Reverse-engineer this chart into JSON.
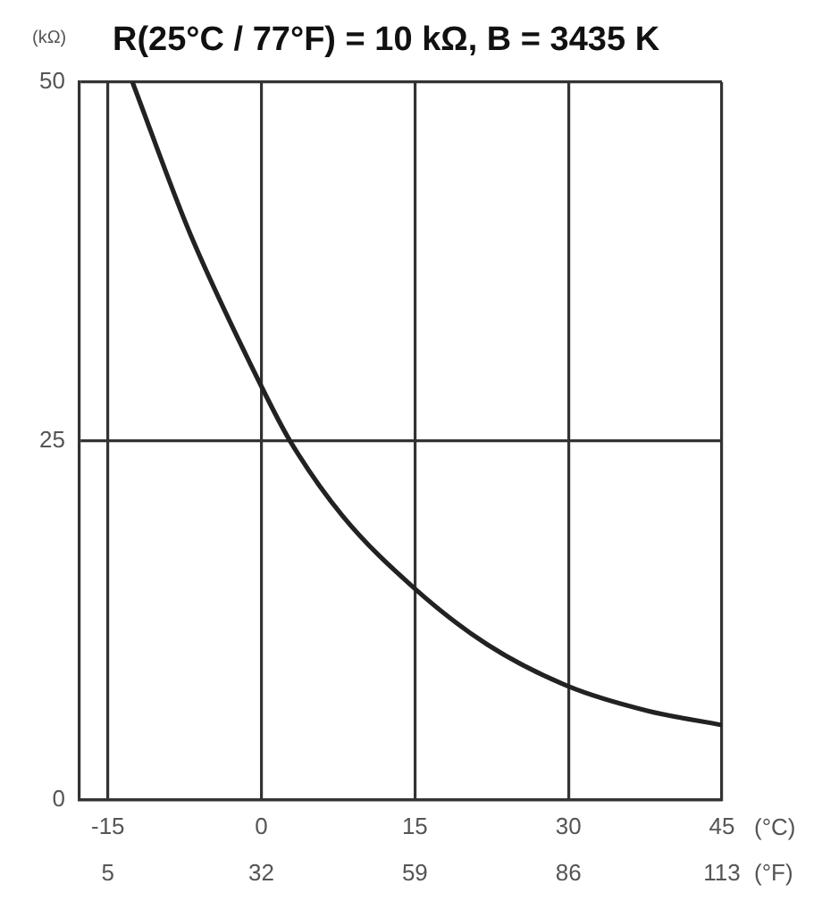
{
  "chart_data": {
    "type": "line",
    "title": "R(25°C / 77°F) = 10 kΩ, B = 3435 K",
    "ylabel": "(kΩ)",
    "xlabel": "(°C)",
    "x2label": "(°F)",
    "series": [
      {
        "color": "#222222",
        "x": [
          -12.6,
          -7,
          0,
          2.8,
          7.9,
          15,
          22.1,
          30,
          37.7,
          45
        ],
        "values": [
          50,
          39.5,
          28.8,
          25,
          19.8,
          14.7,
          10.8,
          7.9,
          6.2,
          5.2
        ]
      }
    ],
    "xlim": [
      -17.78,
      45
    ],
    "xticks": [
      -15,
      0,
      15,
      30,
      45
    ],
    "x2lim": [
      0,
      113
    ],
    "x2ticks": [
      5,
      32,
      59,
      86,
      113
    ],
    "ylim": [
      0,
      50
    ],
    "yticks": [
      0,
      25,
      50
    ],
    "grid": true,
    "legend": false,
    "marker": "none",
    "line_style": "solid"
  }
}
